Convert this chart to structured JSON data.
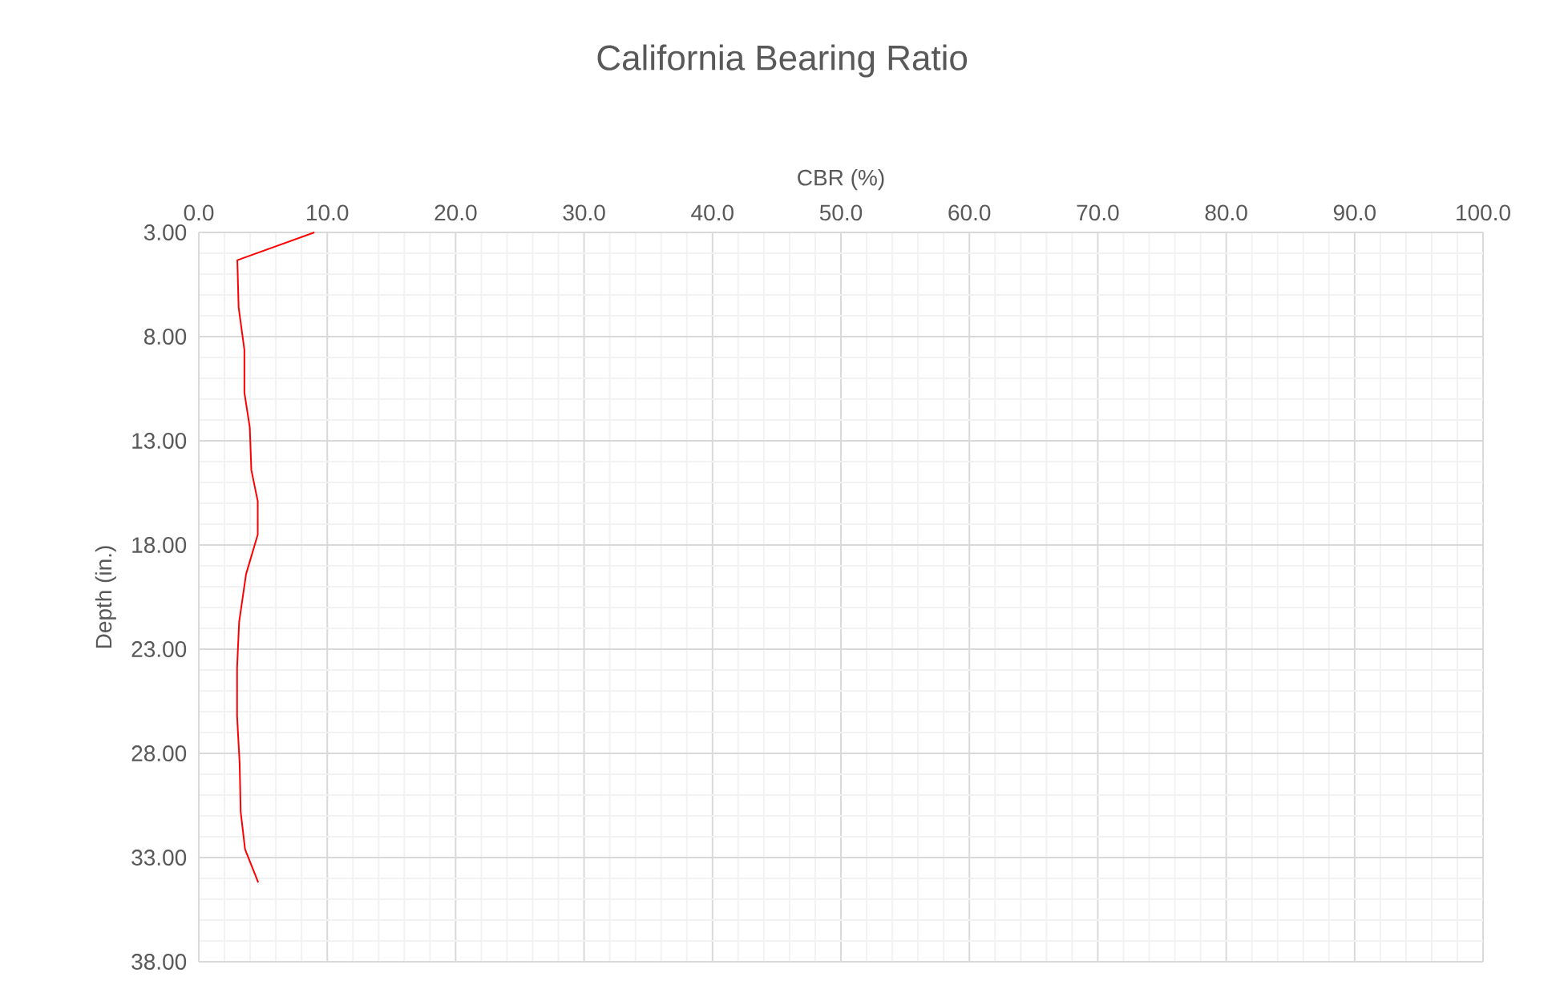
{
  "chart_data": {
    "type": "line",
    "title": "California Bearing Ratio",
    "xlabel": "CBR (%)",
    "ylabel": "Depth (in.)",
    "series": [
      {
        "color": "#ff0000",
        "x": [
          9.0,
          3.0,
          3.1,
          3.55,
          3.55,
          3.97,
          4.09,
          4.59,
          4.59,
          3.68,
          3.14,
          2.98,
          2.98,
          3.18,
          3.26,
          3.6,
          4.63
        ],
        "values": [
          3.0,
          4.33,
          6.59,
          8.64,
          10.69,
          12.36,
          14.4,
          15.9,
          17.5,
          19.4,
          21.7,
          23.9,
          26.2,
          28.5,
          30.8,
          32.6,
          34.2
        ]
      }
    ],
    "xlim": [
      0,
      100
    ],
    "ylim": [
      38,
      3
    ],
    "xticks": [
      {
        "value": 0,
        "label": "0.0"
      },
      {
        "value": 10,
        "label": "10.0"
      },
      {
        "value": 20,
        "label": "20.0"
      },
      {
        "value": 30,
        "label": "30.0"
      },
      {
        "value": 40,
        "label": "40.0"
      },
      {
        "value": 50,
        "label": "50.0"
      },
      {
        "value": 60,
        "label": "60.0"
      },
      {
        "value": 70,
        "label": "70.0"
      },
      {
        "value": 80,
        "label": "80.0"
      },
      {
        "value": 90,
        "label": "90.0"
      },
      {
        "value": 100,
        "label": "100.0"
      }
    ],
    "yticks": [
      {
        "value": 3,
        "label": "3.00"
      },
      {
        "value": 8,
        "label": "8.00"
      },
      {
        "value": 13,
        "label": "13.00"
      },
      {
        "value": 18,
        "label": "18.00"
      },
      {
        "value": 23,
        "label": "23.00"
      },
      {
        "value": 28,
        "label": "28.00"
      },
      {
        "value": 33,
        "label": "33.00"
      },
      {
        "value": 38,
        "label": "38.00"
      }
    ],
    "grid": true,
    "marker": "none",
    "line_style": "solid"
  }
}
